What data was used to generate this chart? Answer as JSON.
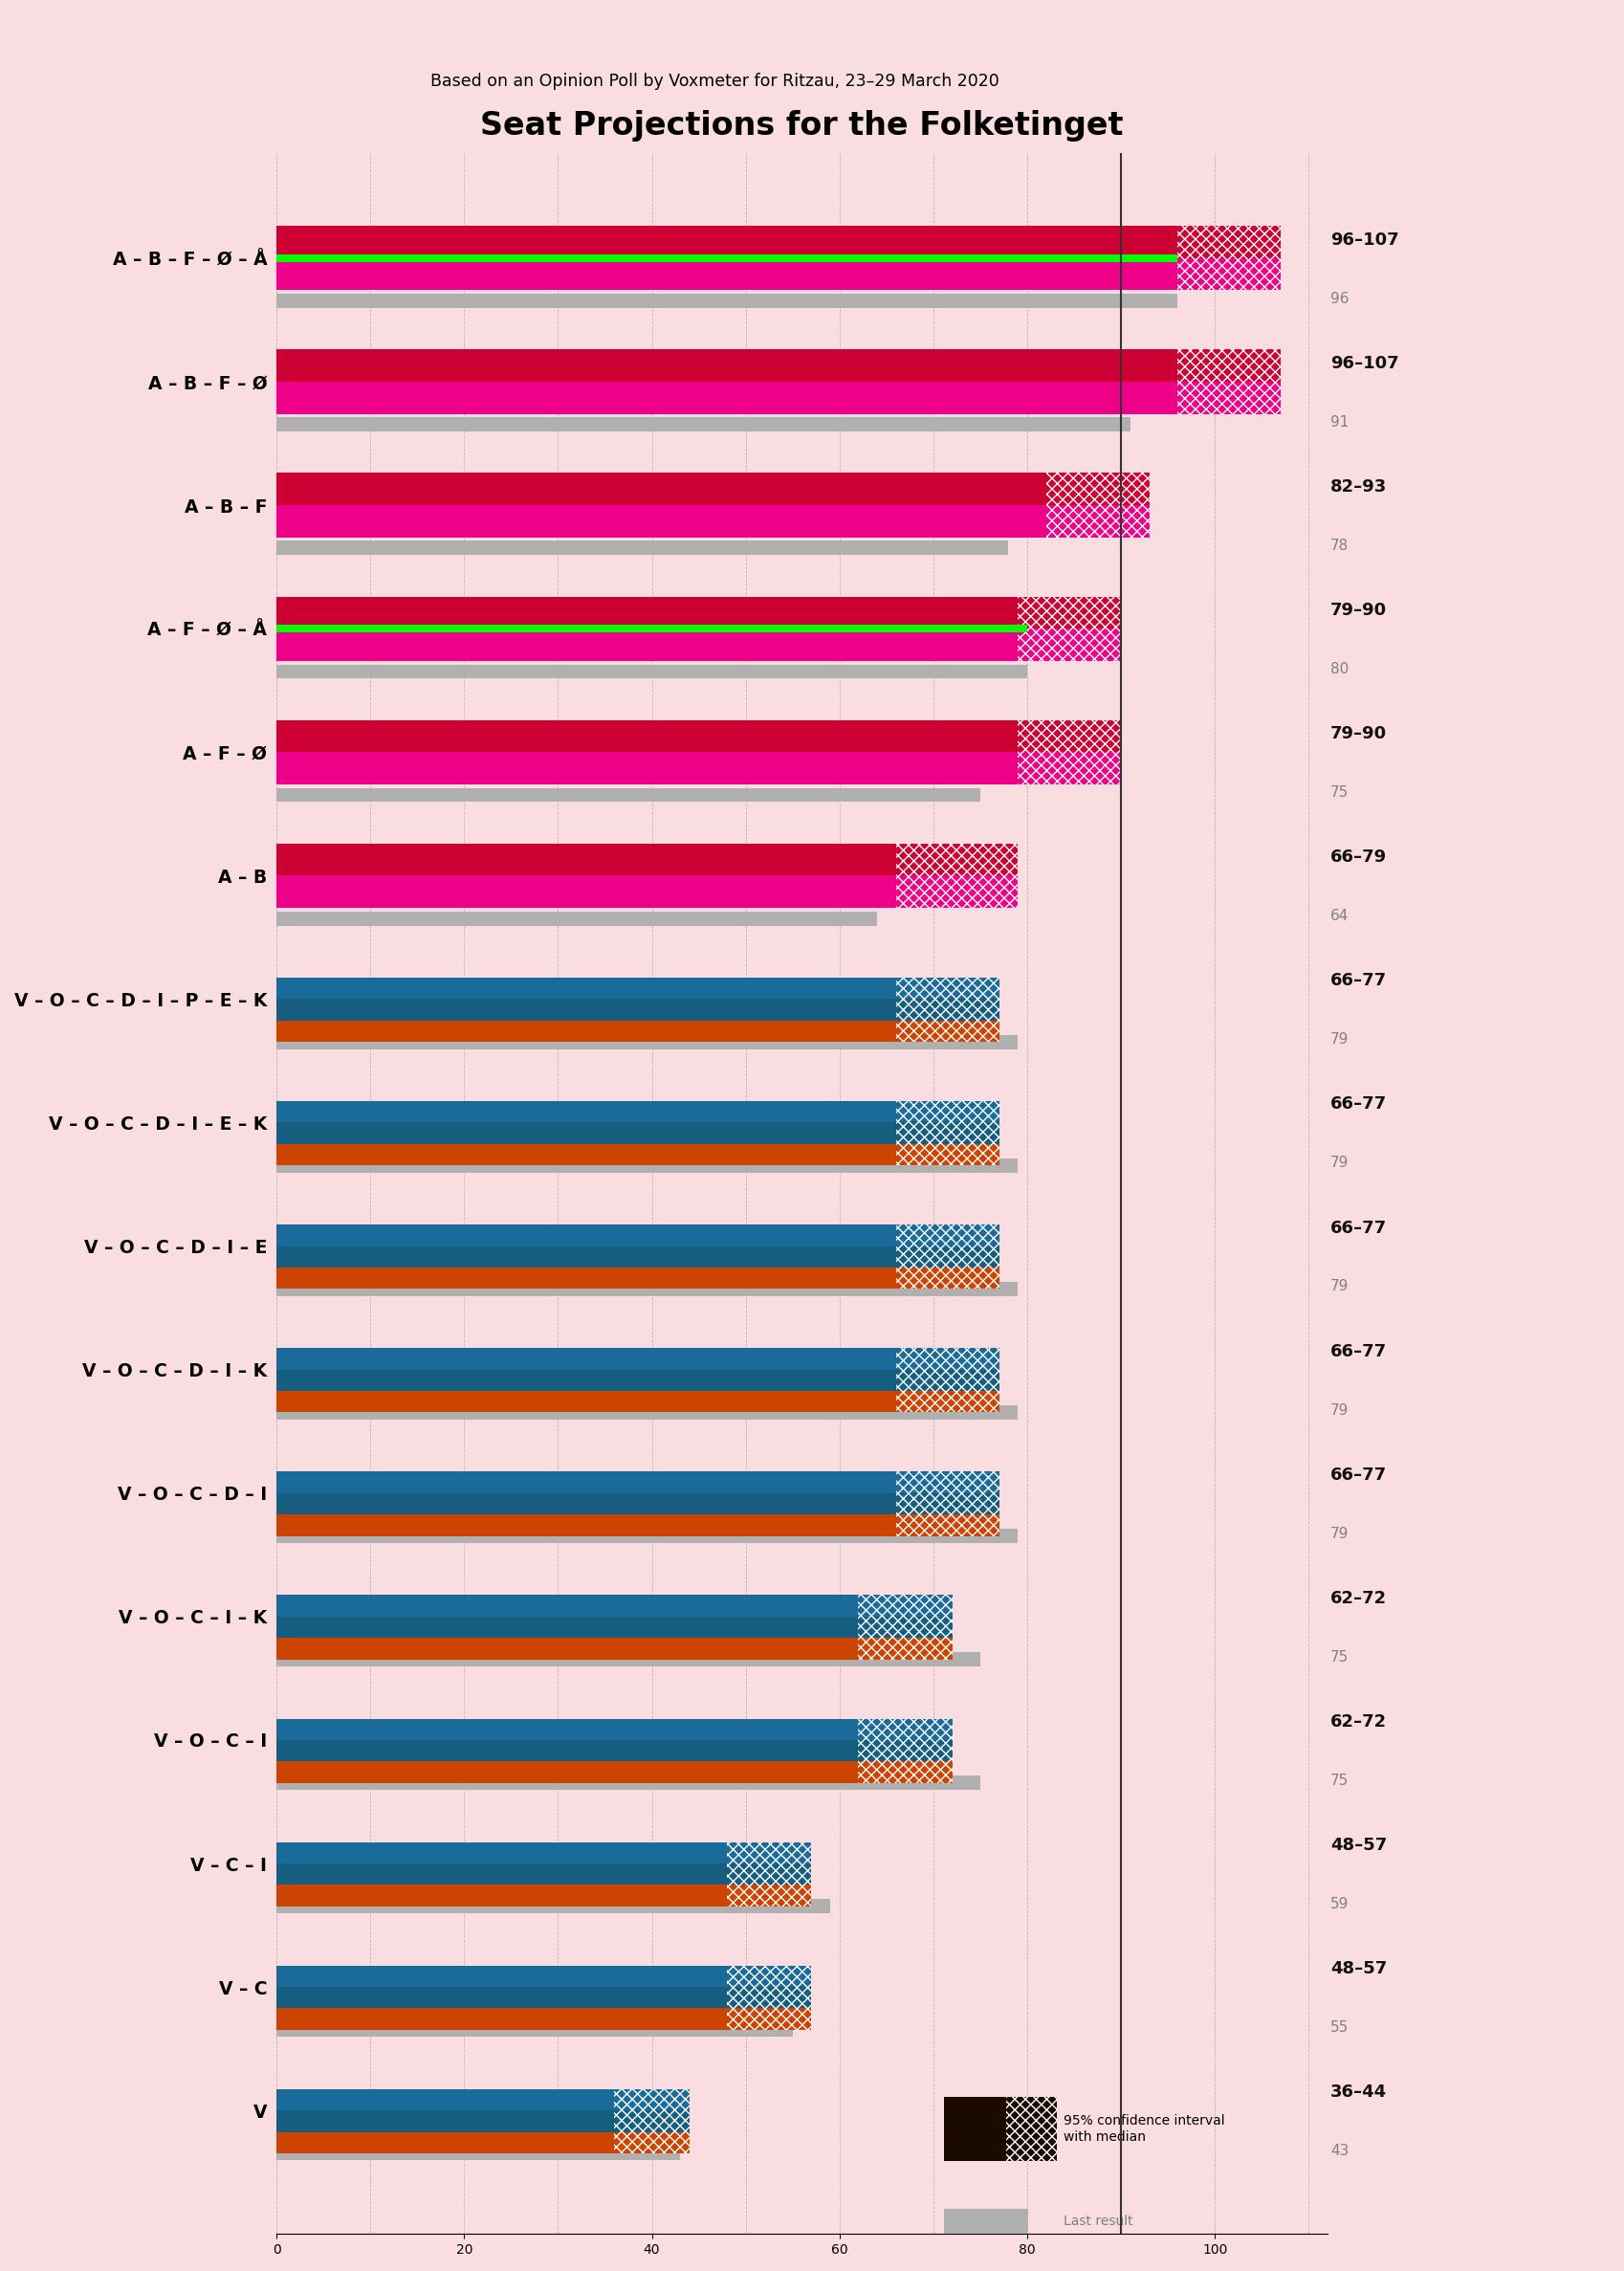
{
  "title": "Seat Projections for the Folketing",
  "subtitle": "Based on an Opinion Poll by Voxmeter for Ritzau, 23–29 March 2020",
  "bg": "#f9dde0",
  "coalitions": [
    {
      "label": "A – B – F – Ø – Å",
      "low": 96,
      "high": 107,
      "last": 96,
      "underline": false,
      "group": "left",
      "greenline": true
    },
    {
      "label": "A – B – F – Ø",
      "low": 96,
      "high": 107,
      "last": 91,
      "underline": true,
      "group": "left",
      "greenline": false
    },
    {
      "label": "A – B – F",
      "low": 82,
      "high": 93,
      "last": 78,
      "underline": false,
      "group": "left",
      "greenline": false
    },
    {
      "label": "A – F – Ø – Å",
      "low": 79,
      "high": 90,
      "last": 80,
      "underline": false,
      "group": "left",
      "greenline": true
    },
    {
      "label": "A – F – Ø",
      "low": 79,
      "high": 90,
      "last": 75,
      "underline": false,
      "group": "left",
      "greenline": false
    },
    {
      "label": "A – B",
      "low": 66,
      "high": 79,
      "last": 64,
      "underline": false,
      "group": "left",
      "greenline": false
    },
    {
      "label": "V – O – C – D – I – P – E – K",
      "low": 66,
      "high": 77,
      "last": 79,
      "underline": false,
      "group": "right",
      "greenline": false
    },
    {
      "label": "V – O – C – D – I – E – K",
      "low": 66,
      "high": 77,
      "last": 79,
      "underline": false,
      "group": "right",
      "greenline": false
    },
    {
      "label": "V – O – C – D – I – E",
      "low": 66,
      "high": 77,
      "last": 79,
      "underline": false,
      "group": "right",
      "greenline": false
    },
    {
      "label": "V – O – C – D – I – K",
      "low": 66,
      "high": 77,
      "last": 79,
      "underline": false,
      "group": "right",
      "greenline": false
    },
    {
      "label": "V – O – C – D – I",
      "low": 66,
      "high": 77,
      "last": 79,
      "underline": false,
      "group": "right",
      "greenline": false
    },
    {
      "label": "V – O – C – I – K",
      "low": 62,
      "high": 72,
      "last": 75,
      "underline": false,
      "group": "right",
      "greenline": false
    },
    {
      "label": "V – O – C – I",
      "low": 62,
      "high": 72,
      "last": 75,
      "underline": false,
      "group": "right",
      "greenline": false
    },
    {
      "label": "V – C – I",
      "low": 48,
      "high": 57,
      "last": 59,
      "underline": false,
      "group": "right",
      "greenline": false
    },
    {
      "label": "V – C",
      "low": 48,
      "high": 57,
      "last": 55,
      "underline": false,
      "group": "right",
      "greenline": false
    },
    {
      "label": "V",
      "low": 36,
      "high": 44,
      "last": 43,
      "underline": false,
      "group": "right",
      "greenline": false
    }
  ],
  "xmax": 112,
  "majority": 90,
  "left_top": "#cc0033",
  "left_bot": "#ee0088",
  "right_top": "#1a6b9a",
  "right_mid": "#155e80",
  "right_bot": "#cc4400",
  "green": "#00ff00",
  "gray": "#b0b0b0"
}
